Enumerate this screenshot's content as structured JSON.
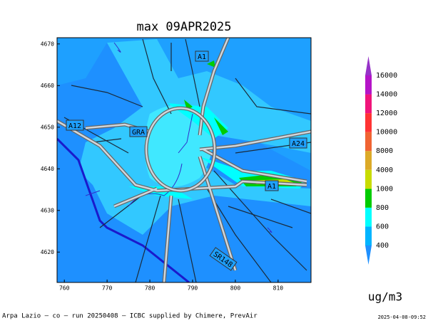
{
  "title": "max 09APR2025",
  "map": {
    "xlim": [
      758.3,
      817.7
    ],
    "ylim": [
      4612.7,
      4671.5
    ],
    "xticks": [
      760,
      770,
      780,
      790,
      800,
      810
    ],
    "yticks": [
      4620,
      4630,
      4640,
      4650,
      4660,
      4670
    ],
    "road_labels": [
      "A1",
      "A12",
      "GRA",
      "A24",
      "A1",
      "SR148"
    ]
  },
  "colorbar": {
    "levels": [
      400,
      600,
      800,
      1000,
      4000,
      8000,
      10000,
      12000,
      14000,
      16000
    ],
    "colors": [
      "#1e90ff",
      "#00b4ff",
      "#00ffff",
      "#00cc00",
      "#c8dc00",
      "#dcaa28",
      "#f06432",
      "#ff3333",
      "#f0147a",
      "#b414c8",
      "#9632c8"
    ]
  },
  "unit": "ug/m3",
  "footer": {
    "left": "Arpa Lazio — co — run 20250408 — ICBC supplied by Chimere, PrevAir",
    "right": "2025-04-08-09:52"
  }
}
